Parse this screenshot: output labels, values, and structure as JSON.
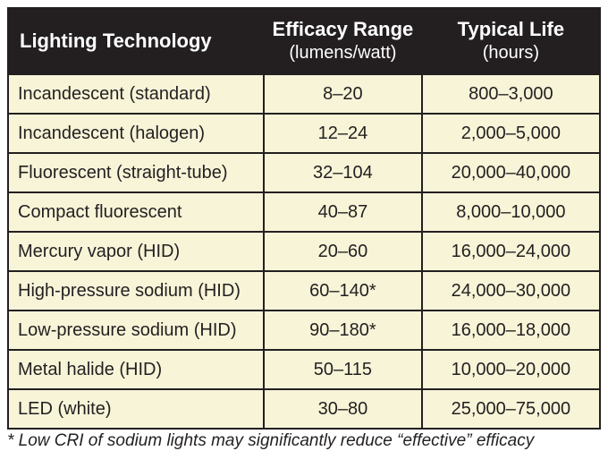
{
  "table": {
    "columns": [
      {
        "title": "Lighting Technology"
      },
      {
        "title": "Efficacy Range",
        "unit": "(lumens/watt)"
      },
      {
        "title": "Typical Life",
        "unit": "(hours)"
      }
    ],
    "rows": [
      [
        "Incandescent (standard)",
        "8–20",
        "800–3,000"
      ],
      [
        "Incandescent (halogen)",
        "12–24",
        "2,000–5,000"
      ],
      [
        "Fluorescent (straight-tube)",
        "32–104",
        "20,000–40,000"
      ],
      [
        "Compact fluorescent",
        "40–87",
        "8,000–10,000"
      ],
      [
        "Mercury vapor (HID)",
        "20–60",
        "16,000–24,000"
      ],
      [
        "High-pressure sodium (HID)",
        "60–140*",
        "24,000–30,000"
      ],
      [
        "Low-pressure sodium (HID)",
        "90–180*",
        "16,000–18,000"
      ],
      [
        "Metal halide (HID)",
        "50–115",
        "10,000–20,000"
      ],
      [
        "LED (white)",
        "30–80",
        "25,000–75,000"
      ]
    ]
  },
  "footnote": "* Low CRI of sodium lights may significantly reduce “effective” efficacy"
}
